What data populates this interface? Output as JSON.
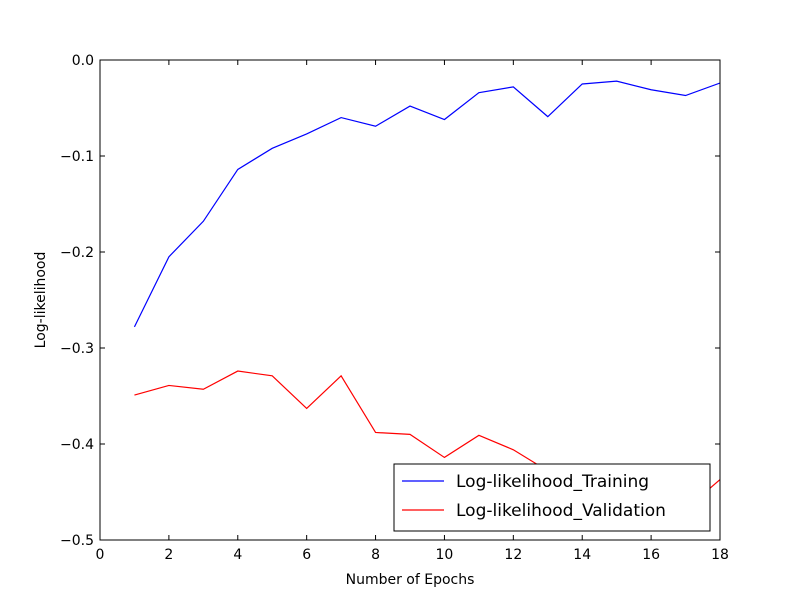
{
  "chart_data": {
    "type": "line",
    "title": "",
    "xlabel": "Number of Epochs",
    "ylabel": "Log-likelihood",
    "xlim": [
      0,
      18
    ],
    "ylim": [
      -0.5,
      0.0
    ],
    "xticks": [
      0,
      2,
      4,
      6,
      8,
      10,
      12,
      14,
      16,
      18
    ],
    "yticks": [
      -0.5,
      -0.4,
      -0.3,
      -0.2,
      -0.1,
      0.0
    ],
    "xtick_labels": [
      "0",
      "2",
      "4",
      "6",
      "8",
      "10",
      "12",
      "14",
      "16",
      "18"
    ],
    "ytick_labels": [
      "−0.5",
      "−0.4",
      "−0.3",
      "−0.2",
      "−0.1",
      "0.0"
    ],
    "grid": false,
    "legend_position": "bottom-right",
    "series": [
      {
        "name": "Log-likelihood_Training",
        "color": "#0000ff",
        "x": [
          1,
          2,
          3,
          4,
          5,
          6,
          7,
          8,
          9,
          10,
          11,
          12,
          13,
          14,
          15,
          16,
          17,
          18
        ],
        "y": [
          -0.278,
          -0.205,
          -0.168,
          -0.114,
          -0.092,
          -0.077,
          -0.06,
          -0.069,
          -0.048,
          -0.062,
          -0.034,
          -0.028,
          -0.059,
          -0.025,
          -0.022,
          -0.031,
          -0.037,
          -0.024
        ]
      },
      {
        "name": "Log-likelihood_Validation",
        "color": "#ff0000",
        "x": [
          1,
          2,
          3,
          4,
          5,
          6,
          7,
          8,
          9,
          10,
          11,
          12,
          13,
          14,
          15,
          16,
          17,
          18
        ],
        "y": [
          -0.349,
          -0.339,
          -0.343,
          -0.324,
          -0.329,
          -0.363,
          -0.329,
          -0.388,
          -0.39,
          -0.414,
          -0.391,
          -0.406,
          -0.428,
          -0.445,
          -0.452,
          -0.462,
          -0.468,
          -0.437
        ]
      }
    ]
  }
}
